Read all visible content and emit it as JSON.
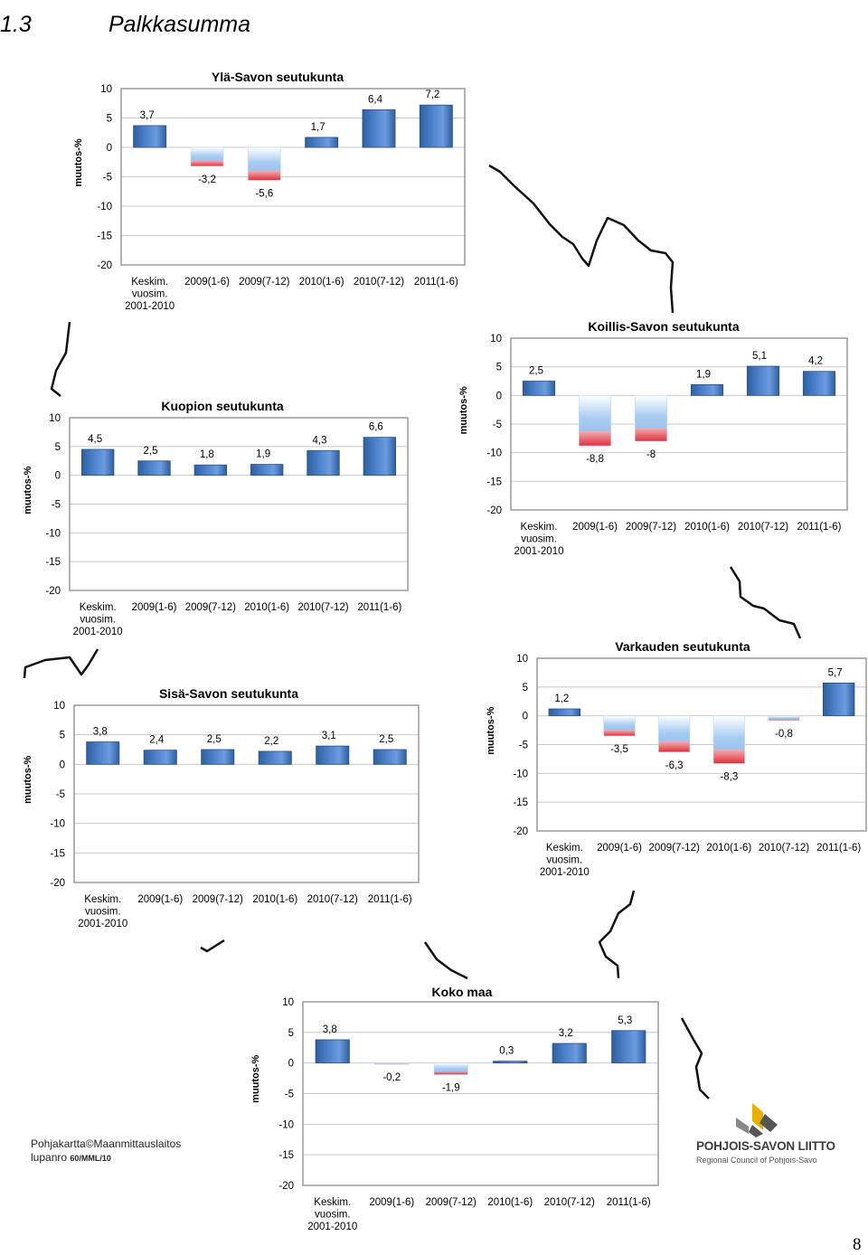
{
  "page": {
    "section_number": "1.3",
    "section_title": "Palkkasumma",
    "page_number": "8",
    "map_credit_line1": "Pohjakartta©Maanmittauslaitos",
    "map_credit_line2": "lupanro",
    "map_credit_code": "60/MML/10",
    "logo_name": "POHJOIS-SAVON LIITTO",
    "logo_subtitle": "Regional Council of Pohjois-Savo",
    "colors": {
      "bar_positive": "#4a7fc9",
      "bar_negative_top": "#ffffff",
      "bar_negative_bottom": "#e0303a",
      "plot_border": "#9a9a9a",
      "gridline": "#c8c8c8",
      "logo_yellow": "#e8b000",
      "logo_gray": "#555555"
    }
  },
  "chart_data": [
    {
      "type": "bar",
      "title": "Ylä-Savon seutukunta",
      "ylabel": "muutos-%",
      "ylim": [
        -20,
        10
      ],
      "yticks": [
        "10",
        "5",
        "0",
        "-5",
        "-10",
        "-15",
        "-20"
      ],
      "categories": [
        [
          "Keskim.",
          "vuosim.",
          "2001-2010"
        ],
        [
          "2009(1-6)"
        ],
        [
          "2009(7-12)"
        ],
        [
          "2010(1-6)"
        ],
        [
          "2010(7-12)"
        ],
        [
          "2011(1-6)"
        ]
      ],
      "values": [
        3.7,
        -3.2,
        -5.6,
        1.7,
        6.4,
        7.2
      ],
      "data_labels": [
        "3,7",
        "-3,2",
        "-5,6",
        "1,7",
        "6,4",
        "7,2"
      ]
    },
    {
      "type": "bar",
      "title": "Koillis-Savon seutukunta",
      "ylabel": "muutos-%",
      "ylim": [
        -20,
        10
      ],
      "yticks": [
        "10",
        "5",
        "0",
        "-5",
        "-10",
        "-15",
        "-20"
      ],
      "categories": [
        [
          "Keskim.",
          "vuosim.",
          "2001-2010"
        ],
        [
          "2009(1-6)"
        ],
        [
          "2009(7-12)"
        ],
        [
          "2010(1-6)"
        ],
        [
          "2010(7-12)"
        ],
        [
          "2011(1-6)"
        ]
      ],
      "values": [
        2.5,
        -8.8,
        -8.0,
        1.9,
        5.1,
        4.2
      ],
      "data_labels": [
        "2,5",
        "-8,8",
        "-8",
        "1,9",
        "5,1",
        "4,2"
      ]
    },
    {
      "type": "bar",
      "title": "Kuopion seutukunta",
      "ylabel": "muutos-%",
      "ylim": [
        -20,
        10
      ],
      "yticks": [
        "10",
        "5",
        "0",
        "-5",
        "-10",
        "-15",
        "-20"
      ],
      "categories": [
        [
          "Keskim.",
          "vuosim.",
          "2001-2010"
        ],
        [
          "2009(1-6)"
        ],
        [
          "2009(7-12)"
        ],
        [
          "2010(1-6)"
        ],
        [
          "2010(7-12)"
        ],
        [
          "2011(1-6)"
        ]
      ],
      "values": [
        4.5,
        2.5,
        1.8,
        1.9,
        4.3,
        6.6
      ],
      "data_labels": [
        "4,5",
        "2,5",
        "1,8",
        "1,9",
        "4,3",
        "6,6"
      ]
    },
    {
      "type": "bar",
      "title": "Varkauden seutukunta",
      "ylabel": "muutos-%",
      "ylim": [
        -20,
        10
      ],
      "yticks": [
        "10",
        "5",
        "0",
        "-5",
        "-10",
        "-15",
        "-20"
      ],
      "categories": [
        [
          "Keskim.",
          "vuosim.",
          "2001-2010"
        ],
        [
          "2009(1-6)"
        ],
        [
          "2009(7-12)"
        ],
        [
          "2010(1-6)"
        ],
        [
          "2010(7-12)"
        ],
        [
          "2011(1-6)"
        ]
      ],
      "values": [
        1.2,
        -3.5,
        -6.3,
        -8.3,
        -0.8,
        5.7
      ],
      "data_labels": [
        "1,2",
        "-3,5",
        "-6,3",
        "-8,3",
        "-0,8",
        "5,7"
      ]
    },
    {
      "type": "bar",
      "title": "Sisä-Savon seutukunta",
      "ylabel": "muutos-%",
      "ylim": [
        -20,
        10
      ],
      "yticks": [
        "10",
        "5",
        "0",
        "-5",
        "-10",
        "-15",
        "-20"
      ],
      "categories": [
        [
          "Keskim.",
          "vuosim.",
          "2001-2010"
        ],
        [
          "2009(1-6)"
        ],
        [
          "2009(7-12)"
        ],
        [
          "2010(1-6)"
        ],
        [
          "2010(7-12)"
        ],
        [
          "2011(1-6)"
        ]
      ],
      "values": [
        3.8,
        2.4,
        2.5,
        2.2,
        3.1,
        2.5
      ],
      "data_labels": [
        "3,8",
        "2,4",
        "2,5",
        "2,2",
        "3,1",
        "2,5"
      ]
    },
    {
      "type": "bar",
      "title": "Koko maa",
      "ylabel": "muutos-%",
      "ylim": [
        -20,
        10
      ],
      "yticks": [
        "10",
        "5",
        "0",
        "-5",
        "-10",
        "-15",
        "-20"
      ],
      "categories": [
        [
          "Keskim.",
          "vuosim.",
          "2001-2010"
        ],
        [
          "2009(1-6)"
        ],
        [
          "2009(7-12)"
        ],
        [
          "2010(1-6)"
        ],
        [
          "2010(7-12)"
        ],
        [
          "2011(1-6)"
        ]
      ],
      "values": [
        3.8,
        -0.2,
        -1.9,
        0.3,
        3.2,
        5.3
      ],
      "data_labels": [
        "3,8",
        "-0,2",
        "-1,9",
        "0,3",
        "3,2",
        "5,3"
      ]
    }
  ]
}
